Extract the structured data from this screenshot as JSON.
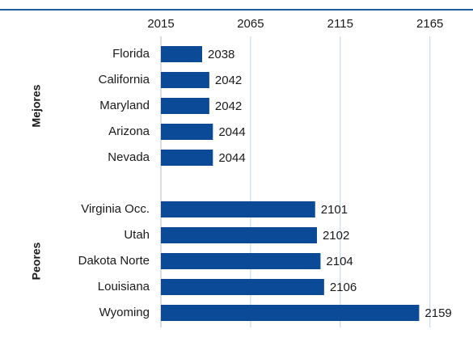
{
  "chart_data": {
    "type": "hbar",
    "categories": [
      "Florida",
      "California",
      "Maryland",
      "Arizona",
      "Nevada",
      null,
      "Virginia Occ.",
      "Utah",
      "Dakota Norte",
      "Louisiana",
      "Wyoming"
    ],
    "values": [
      2038,
      2042,
      2042,
      2044,
      2044,
      null,
      2101,
      2102,
      2104,
      2106,
      2159
    ],
    "groups": [
      {
        "label": "Mejores",
        "from": 0,
        "to": 4
      },
      {
        "label": "Peores",
        "from": 6,
        "to": 10
      }
    ],
    "color": "#0b4a96",
    "xlim": [
      2015,
      2180
    ],
    "xticks": [
      2015,
      2065,
      2115,
      2165
    ],
    "grid": true
  }
}
